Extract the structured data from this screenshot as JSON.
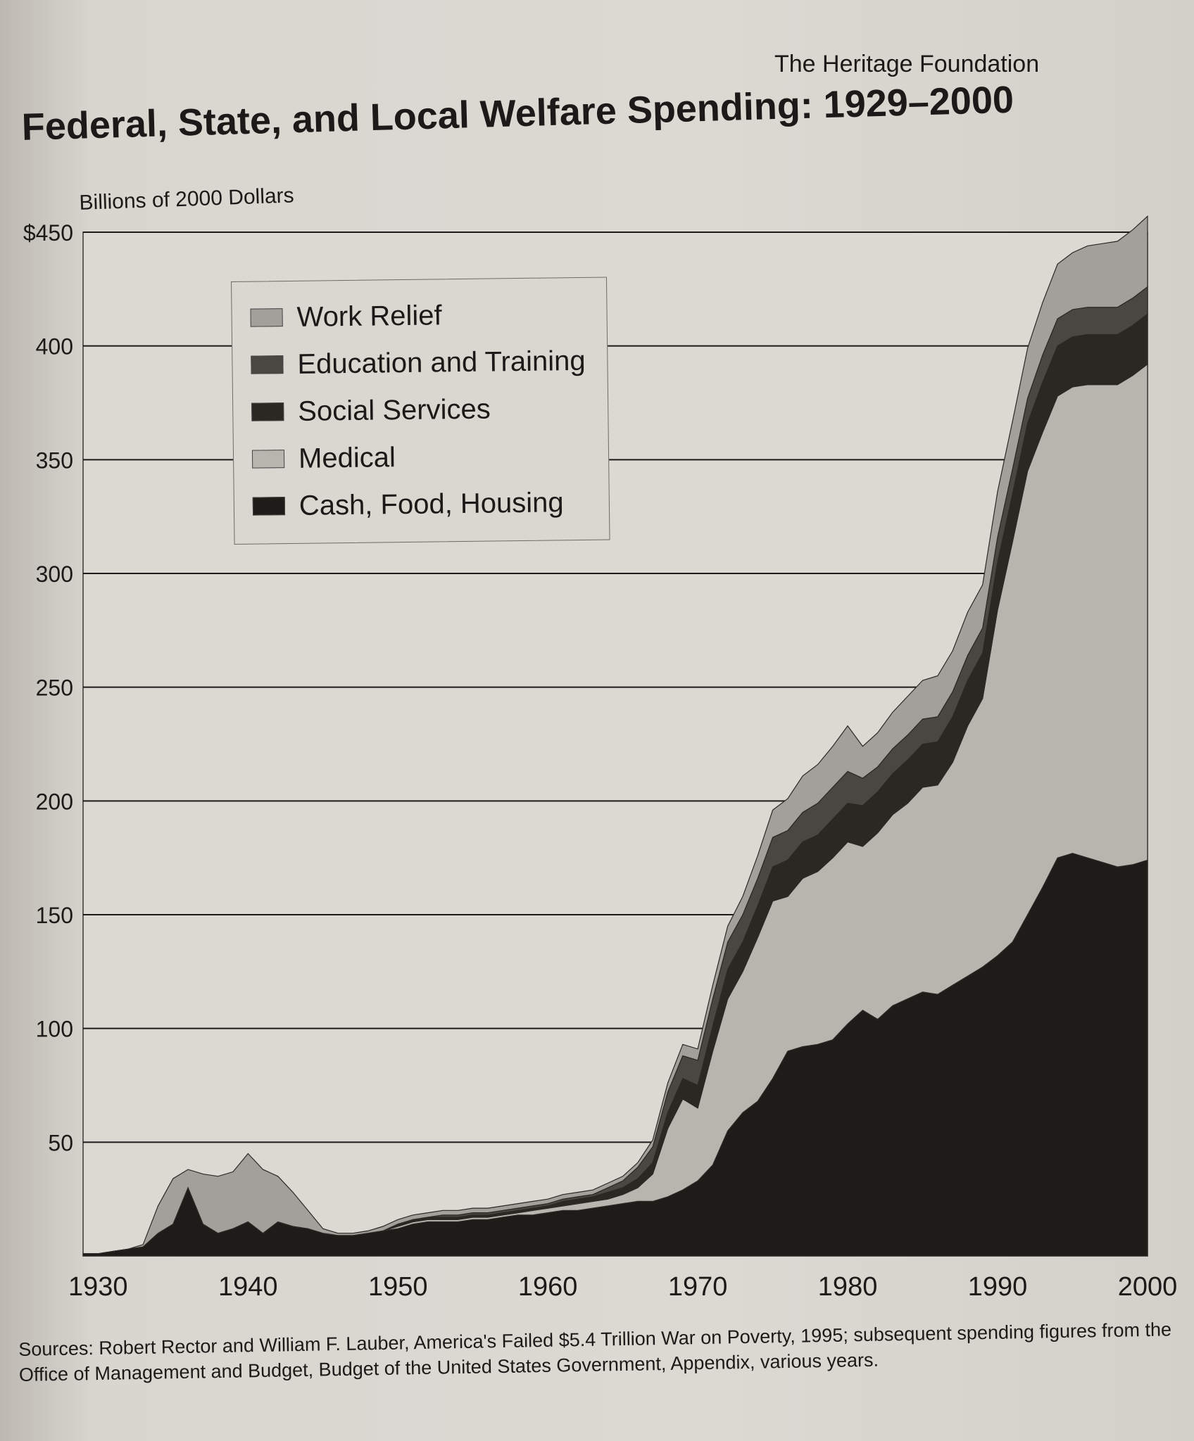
{
  "header": {
    "publisher": "The Heritage Foundation"
  },
  "source_note": "Sources: Robert Rector and William F. Lauber, America's Failed $5.4 Trillion War on Poverty, 1995; subsequent spending figures from the Office of Management and Budget, Budget of the United States Government, Appendix, various years.",
  "colors": {
    "work_relief": "#a3a09b",
    "education_and_training": "#4a4742",
    "social_services": "#2b2824",
    "medical": "#b8b5af",
    "cash_food_housing": "#1e1b18",
    "background": "#dcd9d3",
    "gridline": "#1b1a18"
  },
  "chart_data": {
    "type": "area",
    "stacked": true,
    "title": "Federal, State, and Local Welfare Spending: 1929–2000",
    "ylabel": "Billions of 2000 Dollars",
    "xlabel": "",
    "xlim": [
      1929,
      2000
    ],
    "ylim": [
      0,
      450
    ],
    "grid": true,
    "legend_position": "top-left",
    "xticks": [
      "1930",
      "1940",
      "1950",
      "1960",
      "1970",
      "1980",
      "1990",
      "2000"
    ],
    "xtick_values": [
      1930,
      1940,
      1950,
      1960,
      1970,
      1980,
      1990,
      2000
    ],
    "yticks": [
      "50",
      "100",
      "150",
      "200",
      "250",
      "300",
      "350",
      "400",
      "$450"
    ],
    "ytick_values": [
      50,
      100,
      150,
      200,
      250,
      300,
      350,
      400,
      450
    ],
    "x": [
      1929,
      1930,
      1931,
      1932,
      1933,
      1934,
      1935,
      1936,
      1937,
      1938,
      1939,
      1940,
      1941,
      1942,
      1943,
      1944,
      1945,
      1946,
      1947,
      1948,
      1949,
      1950,
      1951,
      1952,
      1953,
      1954,
      1955,
      1956,
      1957,
      1958,
      1959,
      1960,
      1961,
      1962,
      1963,
      1964,
      1965,
      1966,
      1967,
      1968,
      1969,
      1970,
      1971,
      1972,
      1973,
      1974,
      1975,
      1976,
      1977,
      1978,
      1979,
      1980,
      1981,
      1982,
      1983,
      1984,
      1985,
      1986,
      1987,
      1988,
      1989,
      1990,
      1991,
      1992,
      1993,
      1994,
      1995,
      1996,
      1997,
      1998,
      1999,
      2000
    ],
    "series": [
      {
        "name": "Cash, Food, Housing",
        "values": [
          1,
          1,
          2,
          3,
          4,
          10,
          14,
          30,
          14,
          10,
          12,
          15,
          10,
          15,
          13,
          12,
          10,
          9,
          9,
          10,
          11,
          12,
          14,
          15,
          15,
          15,
          16,
          16,
          17,
          18,
          18,
          19,
          20,
          20,
          21,
          22,
          23,
          24,
          24,
          26,
          29,
          33,
          40,
          55,
          63,
          68,
          78,
          90,
          92,
          93,
          95,
          102,
          108,
          104,
          110,
          113,
          116,
          115,
          119,
          123,
          127,
          132,
          138,
          150,
          162,
          175,
          177,
          175,
          173,
          171,
          172,
          174
        ]
      },
      {
        "name": "Medical",
        "values": [
          0,
          0,
          0,
          0,
          0,
          0,
          0,
          0,
          0,
          0,
          0,
          0,
          0,
          0,
          0,
          0,
          0,
          0,
          0,
          0,
          0,
          1,
          1,
          1,
          1,
          1,
          1,
          1,
          1,
          1,
          2,
          2,
          2,
          3,
          3,
          3,
          4,
          6,
          12,
          30,
          40,
          32,
          50,
          58,
          62,
          72,
          78,
          68,
          74,
          76,
          80,
          80,
          72,
          82,
          84,
          86,
          90,
          92,
          98,
          110,
          118,
          152,
          176,
          195,
          200,
          203,
          205,
          208,
          210,
          212,
          215,
          218
        ]
      },
      {
        "name": "Social Services",
        "values": [
          0,
          0,
          0,
          0,
          0,
          0,
          0,
          0,
          0,
          0,
          0,
          0,
          0,
          0,
          0,
          0,
          0,
          0,
          0,
          0,
          0,
          1,
          1,
          1,
          1,
          1,
          1,
          1,
          1,
          1,
          1,
          1,
          2,
          2,
          2,
          3,
          3,
          4,
          5,
          7,
          9,
          10,
          11,
          13,
          13,
          14,
          15,
          16,
          16,
          16,
          17,
          17,
          18,
          18,
          18,
          19,
          19,
          19,
          20,
          20,
          20,
          21,
          21,
          21,
          22,
          22,
          22,
          22,
          22,
          22,
          22,
          22
        ]
      },
      {
        "name": "Education and Training",
        "values": [
          0,
          0,
          0,
          0,
          0,
          0,
          0,
          0,
          0,
          0,
          0,
          0,
          0,
          0,
          0,
          0,
          0,
          0,
          0,
          0,
          0,
          0,
          0,
          0,
          1,
          1,
          1,
          1,
          1,
          1,
          1,
          1,
          1,
          1,
          1,
          2,
          3,
          5,
          7,
          9,
          10,
          11,
          12,
          12,
          12,
          12,
          13,
          13,
          13,
          14,
          14,
          14,
          12,
          11,
          11,
          11,
          11,
          11,
          11,
          11,
          11,
          11,
          11,
          11,
          12,
          12,
          12,
          12,
          12,
          12,
          12,
          12
        ]
      },
      {
        "name": "Work Relief",
        "values": [
          0,
          0,
          0,
          0,
          1,
          12,
          20,
          8,
          22,
          25,
          25,
          30,
          28,
          20,
          15,
          8,
          2,
          1,
          1,
          1,
          2,
          2,
          2,
          2,
          2,
          2,
          2,
          2,
          2,
          2,
          2,
          2,
          2,
          2,
          2,
          2,
          2,
          2,
          3,
          4,
          5,
          5,
          6,
          7,
          8,
          10,
          12,
          14,
          16,
          17,
          18,
          20,
          14,
          15,
          16,
          17,
          17,
          18,
          18,
          19,
          19,
          20,
          21,
          22,
          23,
          24,
          25,
          27,
          28,
          29,
          30,
          31
        ]
      }
    ]
  }
}
